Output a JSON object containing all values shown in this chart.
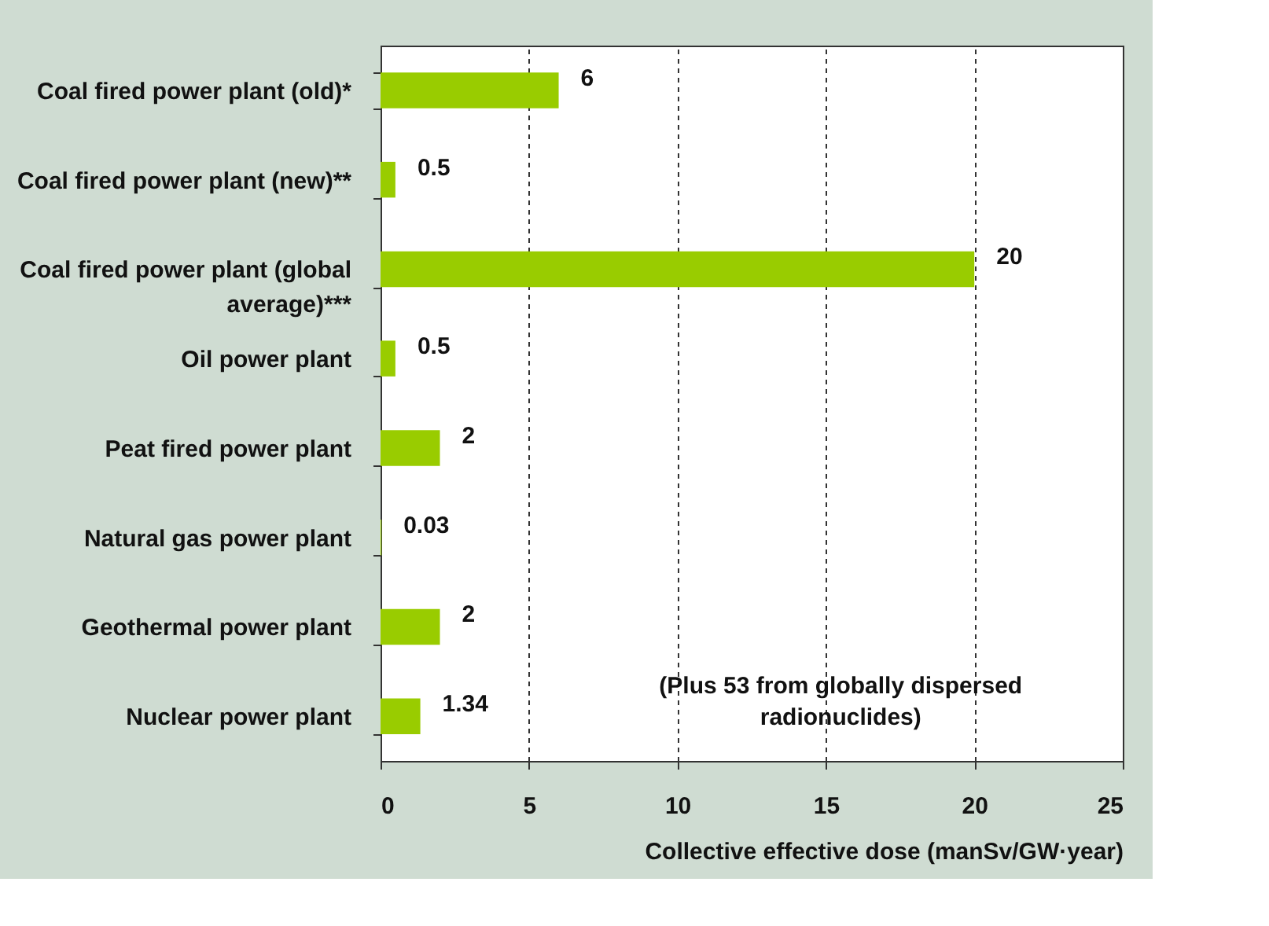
{
  "chart_data": {
    "type": "bar",
    "orientation": "horizontal",
    "xlabel": "Collective effective dose (manSv/GW·year)",
    "categories": [
      "Coal fired power plant (old)*",
      "Coal fired power plant (new)**",
      "Coal fired power plant (global\naverage)***",
      "Oil power plant",
      "Peat fired power plant",
      "Natural gas power plant",
      "Geothermal power plant",
      "Nuclear power plant"
    ],
    "values": [
      6,
      0.5,
      20,
      0.5,
      2,
      0.03,
      2,
      1.34
    ],
    "color": "#99cc00",
    "xlim": [
      0,
      25
    ],
    "xticks": [
      0,
      5,
      10,
      15,
      20,
      25
    ],
    "grid": "x",
    "data_labels": true,
    "annotations": [
      "(Plus 53 from globally dispersed\nradionuclides)"
    ]
  }
}
